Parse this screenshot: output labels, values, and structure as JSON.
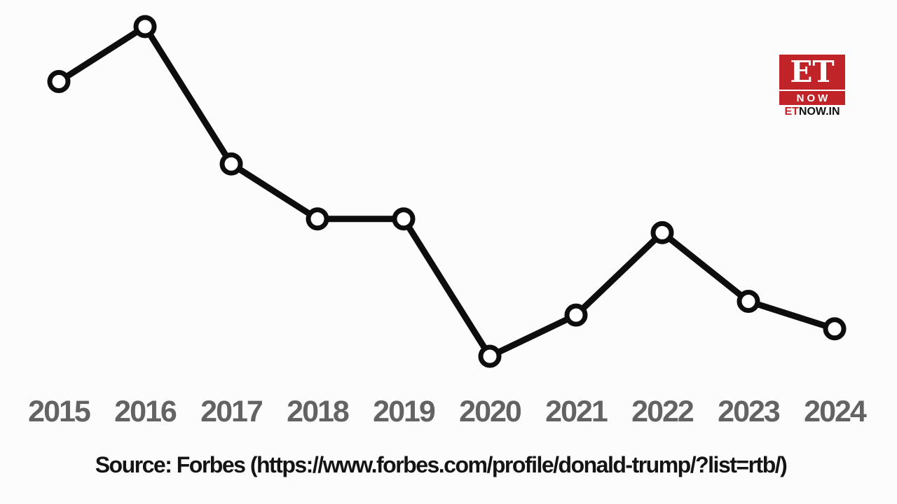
{
  "page": {
    "background": "#fcfcfc"
  },
  "chart_data": {
    "type": "line",
    "title": "",
    "categories": [
      "2015",
      "2016",
      "2017",
      "2018",
      "2019",
      "2020",
      "2021",
      "2022",
      "2023",
      "2024"
    ],
    "series": [
      {
        "name": "",
        "values": [
          4.1,
          4.5,
          3.5,
          3.1,
          3.1,
          2.1,
          2.4,
          3.0,
          2.5,
          2.3
        ]
      }
    ],
    "ylim": [
      2.1,
      4.5
    ],
    "grid": false,
    "legend": "none",
    "y_axis_visible": false,
    "line_color": "#0d0d0d",
    "line_width": 9,
    "marker": {
      "shape": "circle",
      "fill": "#ffffff",
      "stroke": "#0d0d0d"
    },
    "tick_label_color": "#636363"
  },
  "source": {
    "text": "Source: Forbes (https://www.forbes.com/profile/donald-trump/?list=rtb/)"
  },
  "logo": {
    "et": "ET",
    "now": "NOW",
    "site_et": "ET",
    "site_rest": "NOW.IN",
    "brand_red": "#c02428"
  }
}
